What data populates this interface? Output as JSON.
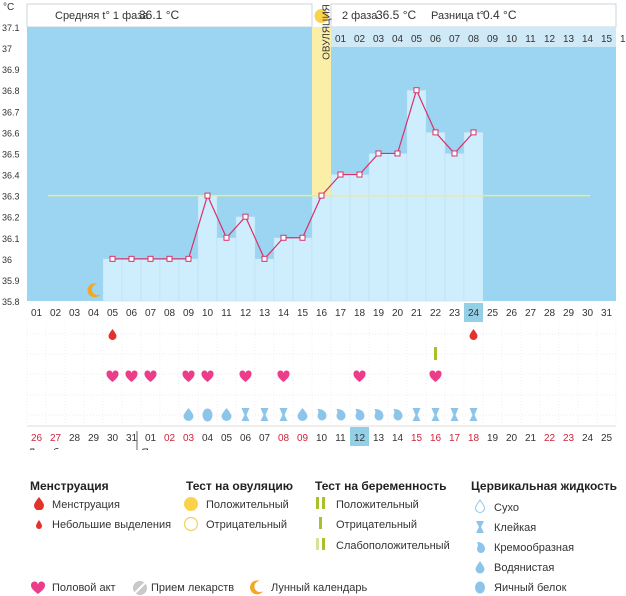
{
  "chart_data": {
    "type": "line",
    "y_unit": "°C",
    "ylim": [
      35.8,
      37.1
    ],
    "yticks": [
      "37.1",
      "37",
      "36.9",
      "36.8",
      "36.7",
      "36.6",
      "36.5",
      "36.4",
      "36.3",
      "36.2",
      "36.1",
      "36",
      "35.9",
      "35.8"
    ],
    "coverline": 36.3,
    "cycle_days": [
      "01",
      "02",
      "03",
      "04",
      "05",
      "06",
      "07",
      "08",
      "09",
      "10",
      "11",
      "12",
      "13",
      "14",
      "15",
      "16",
      "17",
      "18",
      "19",
      "20",
      "21",
      "22",
      "23",
      "24",
      "25",
      "26",
      "27",
      "28",
      "29",
      "30",
      "31"
    ],
    "today_cycle_day": "24",
    "temperatures": [
      null,
      null,
      null,
      null,
      36.0,
      36.0,
      36.0,
      36.0,
      36.0,
      36.3,
      36.1,
      36.2,
      36.0,
      36.1,
      36.1,
      36.3,
      36.4,
      36.4,
      36.5,
      36.5,
      36.8,
      36.6,
      36.5,
      36.6,
      null,
      null,
      null,
      null,
      null,
      null,
      null
    ],
    "ovulation_day": "16",
    "ovulation_label": "ОВУЛЯЦИЯ",
    "luteal_day_numbers": [
      "01",
      "02",
      "03",
      "04",
      "05",
      "06",
      "07",
      "08",
      "09",
      "10",
      "11",
      "12",
      "13",
      "14",
      "15"
    ],
    "header": {
      "phase1_label": "Средняя t° 1 фаза",
      "phase1_value": "36.1 °C",
      "phase2_label": "2 фаза",
      "phase2_value": "36.5 °C",
      "diff_label": "Разница t°",
      "diff_value": "0.4 °C"
    },
    "calendar_dates": [
      "26",
      "27",
      "28",
      "29",
      "30",
      "31",
      "01",
      "02",
      "03",
      "04",
      "05",
      "06",
      "07",
      "08",
      "09",
      "10",
      "11",
      "12",
      "13",
      "14",
      "15",
      "16",
      "17",
      "18",
      "19",
      "20",
      "21",
      "22",
      "23",
      "24",
      "25"
    ],
    "weekend_dates_idx": [
      0,
      1,
      7,
      8,
      13,
      14,
      20,
      21,
      22,
      23,
      27,
      28
    ],
    "today_date_idx": 17,
    "months": [
      "Декабрь",
      "Январь"
    ],
    "events": {
      "menstruation_days": [
        5,
        24
      ],
      "intercourse_days": [
        5,
        6,
        7,
        9,
        10,
        12,
        14,
        18,
        22
      ],
      "pregnancy_test_days": [
        22
      ],
      "moon_days": [
        4
      ],
      "cervical_fluid": [
        "",
        "",
        "",
        "",
        "",
        "",
        "",
        "",
        "blue-drop",
        "blue-tear",
        "blue-drop",
        "sticky",
        "sticky",
        "sticky",
        "blue-drop",
        "creamy",
        "creamy",
        "creamy",
        "creamy",
        "creamy",
        "sticky",
        "sticky",
        "sticky",
        "sticky",
        "",
        "",
        "",
        "",
        "",
        "",
        ""
      ]
    }
  },
  "legend": {
    "menstruation": {
      "title": "Менструация",
      "items": [
        "Менструация",
        "Небольшие выделения"
      ]
    },
    "ovulation_test": {
      "title": "Тест на овуляцию",
      "items": [
        "Положительный",
        "Отрицательный"
      ]
    },
    "pregnancy_test": {
      "title": "Тест на беременность",
      "items": [
        "Положительный",
        "Отрицательный",
        "Слабоположительный"
      ]
    },
    "cervical": {
      "title": "Цервикальная жидкость",
      "items": [
        "Сухо",
        "Клейкая",
        "Кремообразная",
        "Водянистая",
        "Яичный белок"
      ]
    },
    "bottom": [
      "Половой акт",
      "Прием лекарств",
      "Лунный календарь"
    ]
  },
  "colors": {
    "sky": "#9bd5f1",
    "bar_fill": "#ceeefd",
    "line": "#d6336c",
    "ovulation": "#fbeea6",
    "pink": "#ffb7cb",
    "heart": "#ec3d8a",
    "drop_red": "#e3322b",
    "drop_blue": "#8cc4ea",
    "coverline": "#f3e98a",
    "highlight": "#93cfe6"
  }
}
